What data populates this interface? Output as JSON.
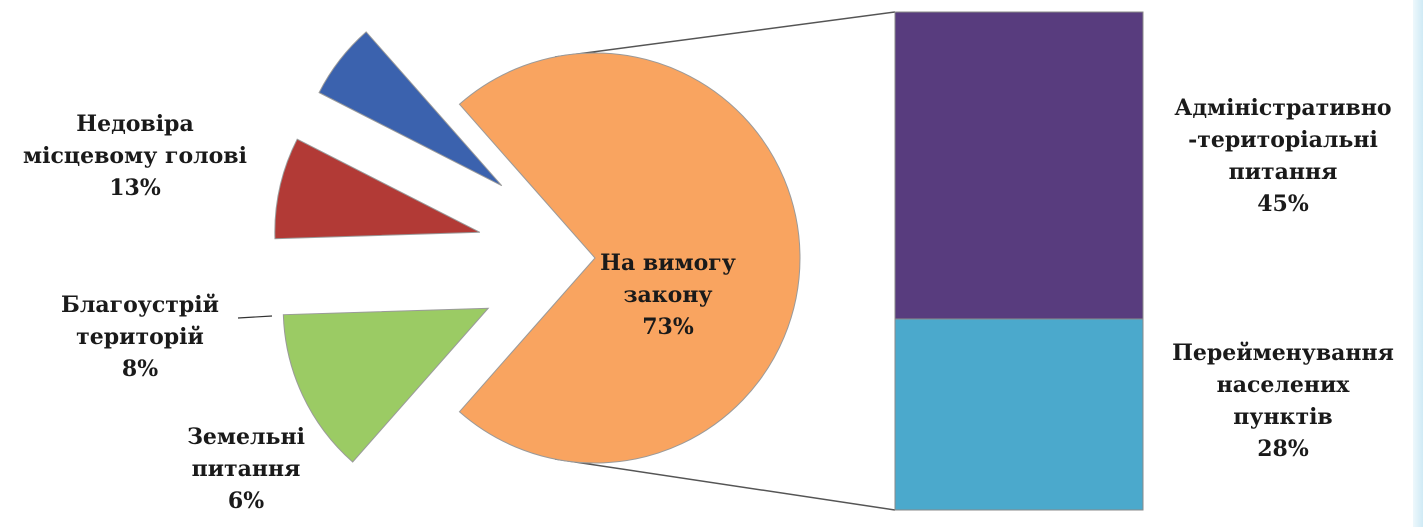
{
  "chart_data": {
    "type": "pie",
    "title": "",
    "pie": {
      "slices": [
        {
          "label_lines": [
            "На вимогу",
            "закону"
          ],
          "value": 73,
          "value_label": "73%",
          "color": "#F9A460"
        },
        {
          "label_lines": [
            "Недовіра",
            "місцевому голові"
          ],
          "value": 13,
          "value_label": "13%",
          "color": "#9BCB64"
        },
        {
          "label_lines": [
            "Благоустрій",
            "територій"
          ],
          "value": 8,
          "value_label": "8%",
          "color": "#B23A36"
        },
        {
          "label_lines": [
            "Земельні",
            "питання"
          ],
          "value": 6,
          "value_label": "6%",
          "color": "#3B62AE"
        }
      ]
    },
    "breakdown": {
      "of": "На вимогу закону",
      "segments": [
        {
          "label_lines": [
            "Адміністративно",
            "-територіальні",
            "питання"
          ],
          "value": 45,
          "value_label": "45%",
          "color": "#583C7E"
        },
        {
          "label_lines": [
            "Перейменування",
            "населених",
            "пунктів"
          ],
          "value": 28,
          "value_label": "28%",
          "color": "#4BA9CC"
        }
      ]
    }
  }
}
